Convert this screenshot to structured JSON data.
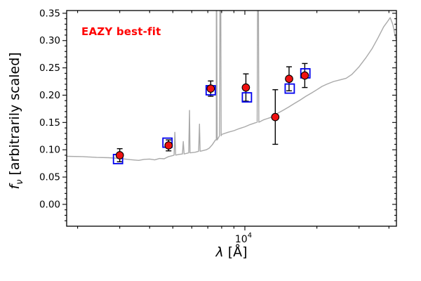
{
  "figure": {
    "annotation": {
      "text": "EAZY best-fit",
      "color": "#ff0000"
    }
  },
  "axes": {
    "xlabel": {
      "symbol": "λ",
      "rest": " [Å]"
    },
    "ylabel": {
      "symbol": "f",
      "sub": "ν",
      "rest": " [arbitrarily scaled]"
    }
  },
  "chart_data": {
    "type": "line+scatter",
    "title": "",
    "annotation": "EAZY best-fit",
    "xlabel": "λ [Å]",
    "ylabel": "fν [arbitrarily scaled]",
    "xscale": "log",
    "grid": false,
    "legend": "none",
    "xlim": [
      1800,
      43000
    ],
    "ylim": [
      -0.04,
      0.355
    ],
    "yticks": [
      0.0,
      0.05,
      0.1,
      0.15,
      0.2,
      0.25,
      0.3,
      0.35
    ],
    "xtick_major": {
      "value": 10000,
      "label_base": "10",
      "label_exp": "4"
    },
    "xticks_minor": [
      2000,
      3000,
      4000,
      5000,
      6000,
      7000,
      8000,
      9000,
      20000,
      30000,
      40000
    ],
    "series": {
      "spectrum": {
        "name": "EAZY best-fit model spectrum",
        "color": "#a9a9a9",
        "continuum": [
          [
            1800,
            0.088
          ],
          [
            2100,
            0.0875
          ],
          [
            2400,
            0.086
          ],
          [
            2700,
            0.0855
          ],
          [
            3000,
            0.084
          ],
          [
            3300,
            0.082
          ],
          [
            3600,
            0.0805
          ],
          [
            3800,
            0.0825
          ],
          [
            4000,
            0.083
          ],
          [
            4200,
            0.0815
          ],
          [
            4400,
            0.084
          ],
          [
            4600,
            0.0835
          ],
          [
            4800,
            0.0875
          ],
          [
            5000,
            0.0895
          ],
          [
            5300,
            0.0915
          ],
          [
            5600,
            0.0925
          ],
          [
            5900,
            0.0945
          ],
          [
            6200,
            0.0955
          ],
          [
            6500,
            0.0975
          ],
          [
            6900,
            0.1
          ],
          [
            7100,
            0.103
          ],
          [
            7300,
            0.109
          ],
          [
            7600,
            0.118
          ],
          [
            8000,
            0.128
          ],
          [
            8500,
            0.132
          ],
          [
            9000,
            0.135
          ],
          [
            9500,
            0.139
          ],
          [
            10000,
            0.142
          ],
          [
            10500,
            0.146
          ],
          [
            11000,
            0.149
          ],
          [
            11500,
            0.151
          ],
          [
            12000,
            0.155
          ],
          [
            12800,
            0.159
          ],
          [
            13600,
            0.166
          ],
          [
            14400,
            0.172
          ],
          [
            15200,
            0.178
          ],
          [
            16000,
            0.184
          ],
          [
            17000,
            0.191
          ],
          [
            18000,
            0.198
          ],
          [
            19000,
            0.204
          ],
          [
            20000,
            0.21
          ],
          [
            21000,
            0.216
          ],
          [
            22000,
            0.22
          ],
          [
            23500,
            0.225
          ],
          [
            25000,
            0.228
          ],
          [
            26500,
            0.231
          ],
          [
            28000,
            0.238
          ],
          [
            30000,
            0.252
          ],
          [
            32000,
            0.268
          ],
          [
            34000,
            0.285
          ],
          [
            36000,
            0.305
          ],
          [
            38000,
            0.325
          ],
          [
            39500,
            0.335
          ],
          [
            40500,
            0.342
          ],
          [
            41500,
            0.33
          ],
          [
            42500,
            0.308
          ],
          [
            43000,
            0.3
          ]
        ],
        "emission_lines": [
          [
            5100,
            0.132
          ],
          [
            5530,
            0.115
          ],
          [
            5870,
            0.172
          ],
          [
            6460,
            0.147
          ],
          [
            7600,
            0.6
          ],
          [
            7900,
            0.6
          ],
          [
            11350,
            0.6
          ]
        ]
      },
      "model_photometry": {
        "name": "model photometry",
        "marker": "open-square",
        "color": "#0000ee",
        "points": [
          {
            "lambda": 2950,
            "fnu": 0.083
          },
          {
            "lambda": 4750,
            "fnu": 0.113
          },
          {
            "lambda": 7200,
            "fnu": 0.209
          },
          {
            "lambda": 10200,
            "fnu": 0.196
          },
          {
            "lambda": 15400,
            "fnu": 0.212
          },
          {
            "lambda": 17900,
            "fnu": 0.24
          }
        ]
      },
      "observed_photometry": {
        "name": "observed photometry",
        "marker": "filled-circle",
        "color": "#ee1111",
        "points": [
          {
            "lambda": 3000,
            "fnu": 0.09,
            "err": 0.012
          },
          {
            "lambda": 4800,
            "fnu": 0.108,
            "err": 0.01
          },
          {
            "lambda": 7200,
            "fnu": 0.212,
            "err": 0.014
          },
          {
            "lambda": 10100,
            "fnu": 0.214,
            "err": 0.025
          },
          {
            "lambda": 13400,
            "fnu": 0.16,
            "err": 0.05
          },
          {
            "lambda": 15300,
            "fnu": 0.23,
            "err": 0.022
          },
          {
            "lambda": 17800,
            "fnu": 0.236,
            "err": 0.022
          }
        ]
      }
    }
  }
}
